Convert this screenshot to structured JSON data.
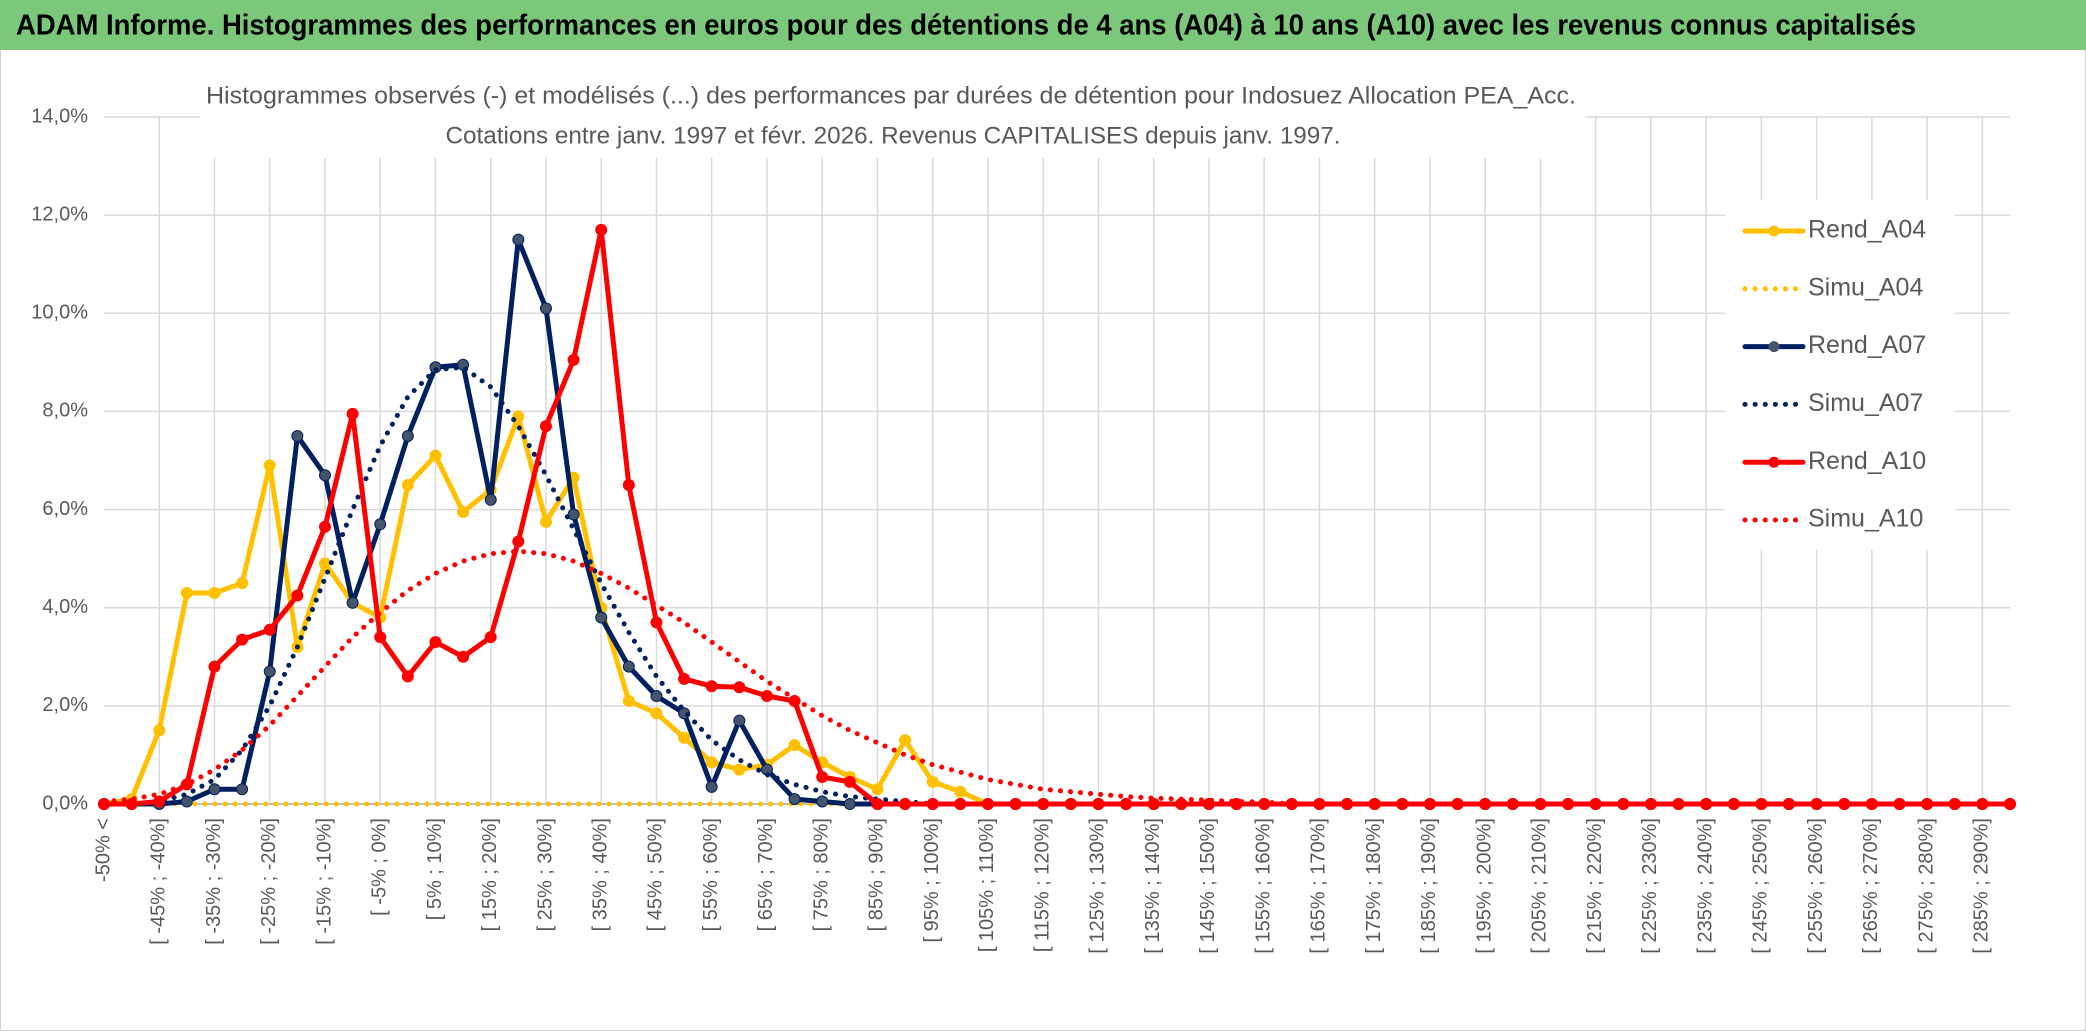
{
  "header": {
    "title": "ADAM Informe. Histogrammes des performances en euros pour des détentions de 4 ans (A04) à 10 ans (A10) avec les revenus connus capitalisés"
  },
  "chart_data": {
    "type": "line",
    "title": [
      "Histogrammes observés (-) et modélisés (...) des performances par durées de détention pour Indosuez Allocation PEA_Acc.",
      "Cotations entre janv. 1997 et févr. 2026. Revenus CAPITALISES depuis janv. 1997."
    ],
    "categories": [
      "-50% <",
      null,
      "[ -45% ; -40%]",
      null,
      "[ -35% ; -30%]",
      null,
      "[ -25% ; -20%]",
      null,
      "[ -15% ; -10%]",
      null,
      "[ -5% ; 0%]",
      null,
      "[ 5% ; 10%]",
      null,
      "[ 15% ; 20%]",
      null,
      "[ 25% ; 30%]",
      null,
      "[ 35% ; 40%]",
      null,
      "[ 45% ; 50%]",
      null,
      "[ 55% ; 60%]",
      null,
      "[ 65% ; 70%]",
      null,
      "[ 75% ; 80%]",
      null,
      "[ 85% ; 90%]",
      null,
      "[ 95% ; 100%]",
      null,
      "[ 105% ; 110%]",
      null,
      "[ 115% ; 120%]",
      null,
      "[ 125% ; 130%]",
      null,
      "[ 135% ; 140%]",
      null,
      "[ 145% ; 150%]",
      null,
      "[ 155% ; 160%]",
      null,
      "[ 165% ; 170%]",
      null,
      "[ 175% ; 180%]",
      null,
      "[ 185% ; 190%]",
      null,
      "[ 195% ; 200%]",
      null,
      "[ 205% ; 210%]",
      null,
      "[ 215% ; 220%]",
      null,
      "[ 225% ; 230%]",
      null,
      "[ 235% ; 240%]",
      null,
      "[ 245% ; 250%]",
      null,
      "[ 255% ; 260%]",
      null,
      "[ 265% ; 270%]",
      null,
      "[ 275% ; 280%]",
      null,
      "[ 285% ; 290%]",
      null
    ],
    "series": [
      {
        "name": "Rend_A04",
        "color": "#ffc000",
        "style": "solid",
        "values": [
          0,
          0.1,
          1.5,
          4.3,
          4.3,
          4.5,
          6.9,
          3.2,
          4.9,
          4.1,
          3.8,
          6.5,
          7.1,
          5.95,
          6.4,
          7.9,
          5.75,
          6.65,
          4.0,
          2.1,
          1.85,
          1.35,
          0.85,
          0.7,
          0.8,
          1.2,
          0.85,
          0.55,
          0.3,
          1.3,
          0.45,
          0.25,
          0,
          0,
          0,
          0,
          0,
          0,
          0,
          0,
          0,
          0,
          0,
          0,
          0,
          0,
          0,
          0,
          0,
          0,
          0,
          0,
          0,
          0,
          0,
          0,
          0,
          0,
          0,
          0,
          0,
          0,
          0,
          0,
          0,
          0,
          0,
          0,
          0,
          0
        ]
      },
      {
        "name": "Simu_A04",
        "color": "#ffc000",
        "style": "dotted",
        "values": [
          0,
          0,
          0,
          0,
          0,
          0,
          0,
          0,
          0,
          0,
          0,
          0,
          0,
          0,
          0,
          0,
          0,
          0,
          0,
          0,
          0,
          0,
          0,
          0,
          0,
          0,
          0,
          0,
          0,
          0,
          0,
          0,
          0,
          null,
          null,
          null,
          null,
          null,
          null,
          null,
          null,
          null,
          null,
          null,
          null,
          null,
          null,
          null,
          null,
          null,
          null,
          null,
          null,
          null,
          null,
          null,
          null,
          null,
          null,
          null,
          null,
          null,
          null,
          null,
          null,
          null,
          null,
          null,
          null,
          null
        ]
      },
      {
        "name": "Rend_A07",
        "color": "#002060",
        "style": "solid",
        "values": [
          0,
          0,
          0,
          0.05,
          0.3,
          0.3,
          2.7,
          7.5,
          6.7,
          4.1,
          5.7,
          7.5,
          8.9,
          8.95,
          6.2,
          11.5,
          10.1,
          5.9,
          3.8,
          2.8,
          2.2,
          1.85,
          0.35,
          1.7,
          0.7,
          0.1,
          0.05,
          0,
          0,
          0,
          0,
          0,
          0,
          0,
          0,
          0,
          0,
          0,
          0,
          0,
          0,
          0,
          0,
          0,
          0,
          0,
          0,
          0,
          0,
          0,
          0,
          0,
          0,
          0,
          0,
          0,
          0,
          0,
          0,
          0,
          0,
          0,
          0,
          0,
          0,
          0,
          0,
          0,
          0,
          0
        ]
      },
      {
        "name": "Simu_A07",
        "color": "#002060",
        "style": "dotted",
        "values": [
          0,
          0,
          0.05,
          0.2,
          0.5,
          1.1,
          2.0,
          3.2,
          4.6,
          6.0,
          7.3,
          8.3,
          8.85,
          8.9,
          8.5,
          7.7,
          6.7,
          5.6,
          4.5,
          3.5,
          2.6,
          1.9,
          1.3,
          0.9,
          0.6,
          0.4,
          0.25,
          0.15,
          0.1,
          0.05,
          0,
          0,
          0,
          0,
          0,
          0,
          0,
          0,
          0,
          0,
          0,
          0,
          0,
          0,
          0,
          0,
          0,
          0,
          0,
          0,
          0,
          0,
          0,
          0,
          0,
          0,
          0,
          0,
          0,
          0,
          0,
          0,
          0,
          0,
          0,
          0,
          0,
          0,
          0,
          0
        ]
      },
      {
        "name": "Rend_A10",
        "color": "#ff0000",
        "style": "solid",
        "values": [
          0,
          0,
          0.05,
          0.4,
          2.8,
          3.35,
          3.55,
          4.25,
          5.65,
          7.95,
          3.4,
          2.6,
          3.3,
          3.0,
          3.4,
          5.35,
          7.7,
          9.05,
          11.7,
          6.5,
          3.7,
          2.55,
          2.4,
          2.38,
          2.2,
          2.1,
          0.55,
          0.45,
          0,
          0,
          0,
          0,
          0,
          0,
          0,
          0,
          0,
          0,
          0,
          0,
          0,
          0,
          0,
          0,
          0,
          0,
          0,
          0,
          0,
          0,
          0,
          0,
          0,
          0,
          0,
          0,
          0,
          0,
          0,
          0,
          0,
          0,
          0,
          0,
          0,
          0,
          0,
          0,
          0,
          0
        ]
      },
      {
        "name": "Simu_A10",
        "color": "#ff0000",
        "style": "dotted",
        "values": [
          0.05,
          0.1,
          0.2,
          0.4,
          0.7,
          1.1,
          1.6,
          2.2,
          2.8,
          3.4,
          3.9,
          4.35,
          4.7,
          4.95,
          5.1,
          5.15,
          5.1,
          4.95,
          4.7,
          4.4,
          4.05,
          3.7,
          3.3,
          2.9,
          2.5,
          2.15,
          1.8,
          1.5,
          1.25,
          1.0,
          0.8,
          0.65,
          0.5,
          0.4,
          0.3,
          0.25,
          0.2,
          0.15,
          0.12,
          0.1,
          0.08,
          0.05,
          0.04,
          0,
          0,
          0,
          0,
          0,
          0,
          0,
          0,
          0,
          0,
          0,
          0,
          0,
          0,
          0,
          0,
          0,
          0,
          0,
          0,
          0,
          0,
          0,
          0,
          0,
          0,
          0
        ]
      }
    ],
    "ylim": [
      0,
      14
    ],
    "yticks": [
      {
        "value": 0,
        "label": "0,0%"
      },
      {
        "value": 2,
        "label": "2,0%"
      },
      {
        "value": 4,
        "label": "4,0%"
      },
      {
        "value": 6,
        "label": "6,0%"
      },
      {
        "value": 8,
        "label": "8,0%"
      },
      {
        "value": 10,
        "label": "10,0%"
      },
      {
        "value": 12,
        "label": "12,0%"
      },
      {
        "value": 14,
        "label": "14,0%"
      }
    ],
    "grid": true,
    "legend": "right"
  }
}
